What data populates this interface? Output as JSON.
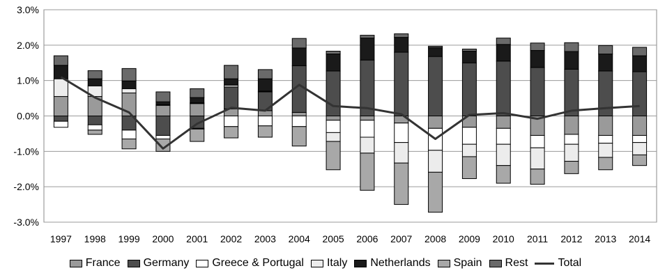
{
  "chart_data": {
    "type": "bar",
    "stacked": true,
    "categories": [
      "1997",
      "1998",
      "1999",
      "2000",
      "2001",
      "2002",
      "2003",
      "2004",
      "2005",
      "2006",
      "2007",
      "2008",
      "2009",
      "2010",
      "2011",
      "2012",
      "2013",
      "2014"
    ],
    "y_tick_labels": [
      "3.0%",
      "2.0%",
      "1.0%",
      "0.0%",
      "-1.0%",
      "-2.0%",
      "-3.0%"
    ],
    "ylim": [
      -3.0,
      3.0
    ],
    "y_ticks": [
      3.0,
      2.0,
      1.0,
      0.0,
      -1.0,
      -2.0,
      -3.0
    ],
    "grid": true,
    "legend_position": "bottom",
    "series": [
      {
        "name": "France",
        "color": "#9a9a9a",
        "values": [
          0.55,
          0.55,
          0.65,
          0.3,
          0.35,
          0.2,
          0.15,
          0.1,
          -0.12,
          -0.12,
          -0.2,
          -0.35,
          -0.32,
          -0.35,
          -0.55,
          -0.52,
          -0.55,
          -0.55
        ]
      },
      {
        "name": "Germany",
        "color": "#4d4d4d",
        "values": [
          -0.15,
          -0.25,
          -0.4,
          -0.55,
          -0.35,
          0.62,
          0.53,
          1.32,
          1.27,
          1.58,
          1.8,
          1.68,
          1.5,
          1.55,
          1.37,
          1.32,
          1.27,
          1.25
        ]
      },
      {
        "name": "Greece & Portugal",
        "color": "#ffffff",
        "values": [
          -0.17,
          -0.15,
          -0.25,
          -0.1,
          -0.02,
          -0.3,
          -0.28,
          -0.3,
          -0.35,
          -0.48,
          -0.55,
          -0.62,
          -0.48,
          -0.45,
          -0.35,
          -0.28,
          -0.22,
          -0.2
        ]
      },
      {
        "name": "Italy",
        "color": "#ececec",
        "values": [
          0.5,
          0.3,
          0.12,
          0.02,
          0.02,
          0.05,
          0.02,
          0.0,
          -0.25,
          -0.45,
          -0.58,
          -0.62,
          -0.35,
          -0.6,
          -0.6,
          -0.48,
          -0.4,
          -0.35
        ]
      },
      {
        "name": "Netherlands",
        "color": "#1a1a1a",
        "values": [
          0.38,
          0.2,
          0.22,
          0.08,
          0.15,
          0.18,
          0.35,
          0.5,
          0.48,
          0.62,
          0.42,
          0.25,
          0.33,
          0.47,
          0.48,
          0.5,
          0.48,
          0.45
        ]
      },
      {
        "name": "Spain",
        "color": "#a8a8a8",
        "values": [
          0.0,
          -0.12,
          -0.28,
          -0.35,
          -0.35,
          -0.32,
          -0.32,
          -0.55,
          -0.8,
          -1.05,
          -1.17,
          -1.13,
          -0.62,
          -0.5,
          -0.43,
          -0.35,
          -0.35,
          -0.3
        ]
      },
      {
        "name": "Rest",
        "color": "#6a6a6a",
        "values": [
          0.27,
          0.23,
          0.35,
          0.28,
          0.25,
          0.38,
          0.26,
          0.27,
          0.08,
          0.08,
          0.1,
          0.04,
          0.06,
          0.18,
          0.21,
          0.25,
          0.24,
          0.24
        ]
      }
    ],
    "line": {
      "name": "Total",
      "color": "#333333",
      "values": [
        1.1,
        0.52,
        0.1,
        -0.92,
        -0.22,
        0.23,
        0.15,
        0.88,
        0.28,
        0.22,
        0.05,
        -0.65,
        0.03,
        0.08,
        -0.08,
        0.15,
        0.22,
        0.28
      ]
    }
  }
}
